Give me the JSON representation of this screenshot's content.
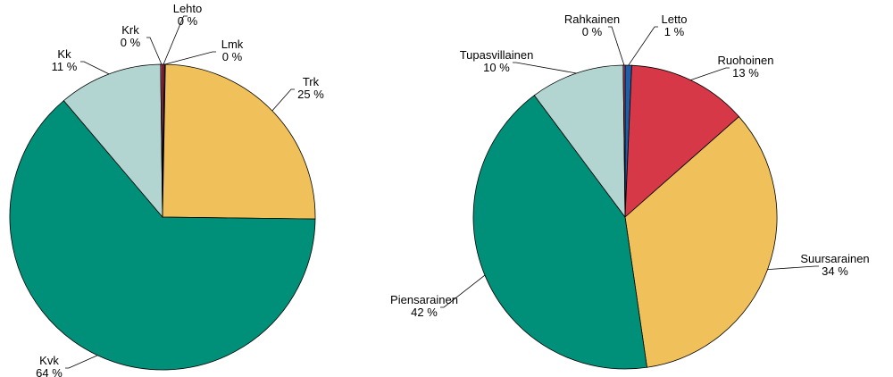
{
  "chart_data": [
    {
      "type": "pie",
      "categories": [
        "Lehto",
        "Lmk",
        "Trk",
        "Kvk",
        "Kk",
        "Krk"
      ],
      "values": [
        0.2,
        0.1,
        24.9,
        63.6,
        11.0,
        0.2
      ],
      "value_labels": [
        "0 %",
        "0 %",
        "25 %",
        "64 %",
        "11 %",
        "0 %"
      ],
      "colors": [
        "#d63848",
        "#1f5fa8",
        "#f0c05a",
        "#009079",
        "#b3d5d1",
        "#c0486a"
      ]
    },
    {
      "type": "pie",
      "categories": [
        "Letto",
        "Ruohoinen",
        "Suursarainen",
        "Piensarainen",
        "Tupasvillainen",
        "Rahkainen"
      ],
      "values": [
        0.7,
        12.8,
        34.2,
        42.1,
        10.0,
        0.2
      ],
      "value_labels": [
        "1 %",
        "13 %",
        "34 %",
        "42 %",
        "10 %",
        "0 %"
      ],
      "colors": [
        "#1f5fa8",
        "#d63848",
        "#f0c05a",
        "#009079",
        "#b3d5d1",
        "#c0486a"
      ]
    }
  ]
}
